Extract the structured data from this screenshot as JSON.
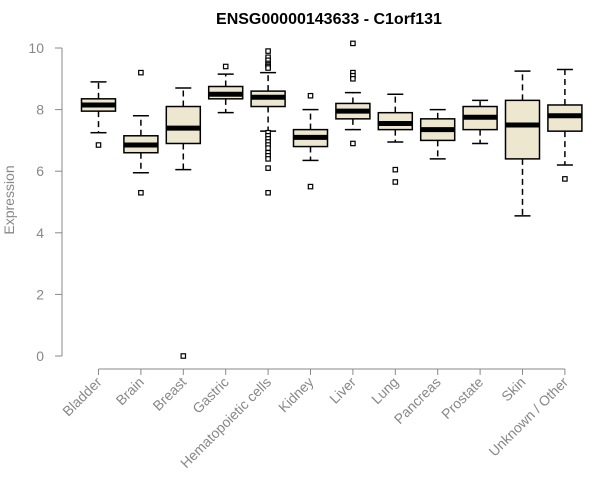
{
  "chart_data": {
    "type": "box",
    "title": "ENSG00000143633 - C1orf131",
    "ylabel": "Expression",
    "xlabel": "",
    "ylim": [
      0,
      10
    ],
    "yticks": [
      0,
      2,
      4,
      6,
      8,
      10
    ],
    "grid": false,
    "categories": [
      "Bladder",
      "Brain",
      "Breast",
      "Gastric",
      "Hematopoietic cells",
      "Kidney",
      "Liver",
      "Lung",
      "Pancreas",
      "Prostate",
      "Skin",
      "Unknown / Other"
    ],
    "boxes": [
      {
        "min": 7.25,
        "q1": 7.95,
        "median": 8.15,
        "q3": 8.35,
        "max": 8.9,
        "outliers": [
          6.85
        ]
      },
      {
        "min": 5.95,
        "q1": 6.6,
        "median": 6.85,
        "q3": 7.15,
        "max": 7.8,
        "outliers": [
          9.2,
          5.3
        ]
      },
      {
        "min": 6.05,
        "q1": 6.9,
        "median": 7.4,
        "q3": 8.1,
        "max": 8.7,
        "outliers": [
          0.0
        ]
      },
      {
        "min": 7.9,
        "q1": 8.35,
        "median": 8.5,
        "q3": 8.75,
        "max": 9.15,
        "outliers": [
          9.4
        ]
      },
      {
        "min": 7.3,
        "q1": 8.1,
        "median": 8.4,
        "q3": 8.6,
        "max": 9.2,
        "outliers": [
          9.9,
          9.7,
          9.6,
          9.5,
          9.45,
          9.4,
          9.35,
          7.25,
          7.15,
          7.05,
          6.95,
          6.85,
          6.75,
          6.6,
          6.5,
          6.4,
          6.1,
          5.3
        ]
      },
      {
        "min": 6.35,
        "q1": 6.8,
        "median": 7.1,
        "q3": 7.35,
        "max": 8.0,
        "outliers": [
          8.45,
          5.5
        ]
      },
      {
        "min": 7.35,
        "q1": 7.7,
        "median": 7.95,
        "q3": 8.2,
        "max": 8.55,
        "outliers": [
          10.15,
          9.2,
          9.1,
          9.0,
          6.9
        ]
      },
      {
        "min": 6.95,
        "q1": 7.35,
        "median": 7.55,
        "q3": 7.9,
        "max": 8.5,
        "outliers": [
          6.05,
          5.65
        ]
      },
      {
        "min": 6.4,
        "q1": 7.0,
        "median": 7.35,
        "q3": 7.7,
        "max": 8.0,
        "outliers": []
      },
      {
        "min": 6.9,
        "q1": 7.35,
        "median": 7.75,
        "q3": 8.1,
        "max": 8.3,
        "outliers": []
      },
      {
        "min": 4.55,
        "q1": 6.4,
        "median": 7.5,
        "q3": 8.3,
        "max": 9.25,
        "outliers": []
      },
      {
        "min": 6.2,
        "q1": 7.3,
        "median": 7.8,
        "q3": 8.15,
        "max": 9.3,
        "outliers": [
          5.75
        ]
      }
    ]
  },
  "colors": {
    "box_fill": "#ede7cf",
    "box_stroke": "#000000",
    "axis": "#888888"
  }
}
